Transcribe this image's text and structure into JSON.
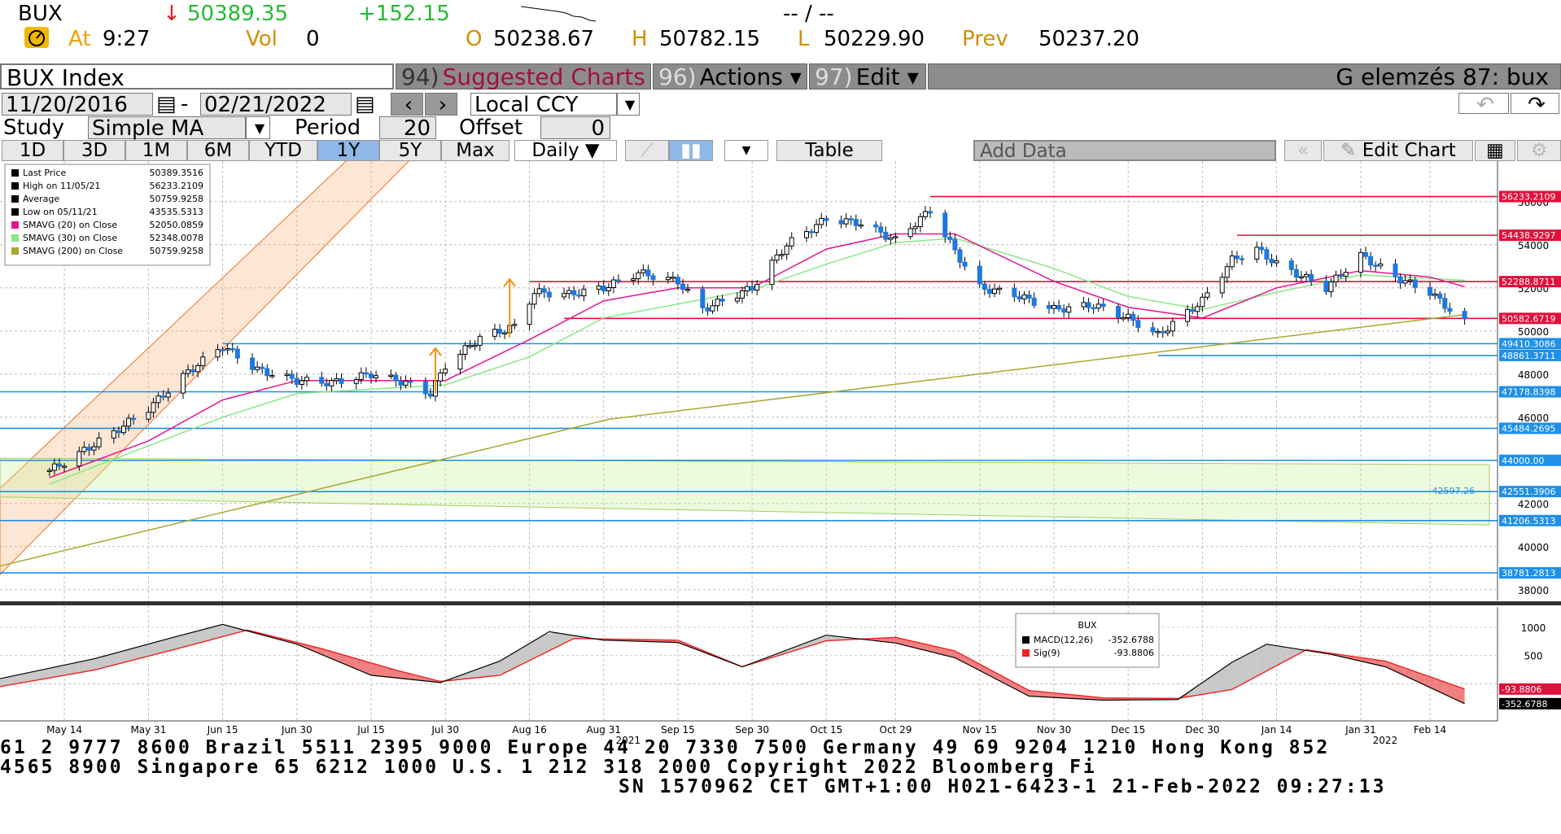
{
  "quote": {
    "ticker": "BUX",
    "arrow": "↓",
    "last": "50389.35",
    "change": "+152.15",
    "range_text": "-- / --",
    "at_label": "At",
    "time": "9:27",
    "vol_label": "Vol",
    "vol": "0",
    "open_label": "O",
    "open": "50238.67",
    "high_label": "H",
    "high": "50782.15",
    "low_label": "L",
    "low": "50229.90",
    "prev_label": "Prev",
    "prev": "50237.20"
  },
  "toolbar": {
    "security": "BUX Index",
    "suggested_num": "94)",
    "suggested": "Suggested Charts",
    "actions_num": "96)",
    "actions": "Actions ▾",
    "edit_num": "97)",
    "edit": "Edit ▾",
    "right_title": "G elemzés 87: bux"
  },
  "range": {
    "start": "11/20/2016",
    "end": "02/21/2022",
    "sep": "-",
    "currency": "Local CCY"
  },
  "study": {
    "label": "Study",
    "value": "Simple MA",
    "period_label": "Period",
    "period": "20",
    "offset_label": "Offset",
    "offset": "0"
  },
  "periods": [
    "1D",
    "3D",
    "1M",
    "6M",
    "YTD",
    "1Y",
    "5Y",
    "Max"
  ],
  "selected_period": "1Y",
  "frequency": "Daily ▼",
  "table_label": "Table",
  "add_data_placeholder": "Add Data",
  "edit_chart_label": "Edit Chart",
  "legend": [
    {
      "label": "Last Price",
      "value": "50389.3516",
      "color": "#000000"
    },
    {
      "label": "High on 11/05/21",
      "value": "56233.2109",
      "color": "#000000"
    },
    {
      "label": "Average",
      "value": "50759.9258",
      "color": "#000000"
    },
    {
      "label": "Low on 05/11/21",
      "value": "43535.5313",
      "color": "#000000"
    },
    {
      "label": "SMAVG (20)  on Close",
      "value": "52050.0859",
      "color": "#e6148c"
    },
    {
      "label": "SMAVG (30)  on Close",
      "value": "52348.0078",
      "color": "#88e888"
    },
    {
      "label": "SMAVG (200)  on Close",
      "value": "50759.9258",
      "color": "#a8a830"
    }
  ],
  "macd_legend": {
    "title": "BUX",
    "items": [
      {
        "label": "MACD(12,26)",
        "value": "-352.6788",
        "color": "#000000"
      },
      {
        "label": "Sig(9)",
        "value": "-93.8806",
        "color": "#ee2222"
      }
    ]
  },
  "chart_data": {
    "type": "candlestick",
    "ylim": [
      37500,
      57500
    ],
    "yticks": [
      38000,
      40000,
      42000,
      44000,
      46000,
      48000,
      50000,
      52000,
      54000,
      56000
    ],
    "xtick_labels": [
      "May 14",
      "May 31",
      "Jun 15",
      "Jun 30",
      "Jul 15",
      "Jul 30",
      "Aug 16",
      "Aug 31",
      "Sep 15",
      "Sep 30",
      "Oct 15",
      "Oct 29",
      "Nov 15",
      "Nov 30",
      "Dec 15",
      "Dec 30",
      "Jan 14",
      "Jan 31",
      "Feb 14"
    ],
    "year_labels": [
      "2021",
      "2022"
    ],
    "close_path": [
      [
        "2021-05-11",
        43535
      ],
      [
        "2021-05-14",
        43900
      ],
      [
        "2021-05-24",
        45300
      ],
      [
        "2021-05-31",
        46400
      ],
      [
        "2021-06-08",
        48100
      ],
      [
        "2021-06-15",
        49300
      ],
      [
        "2021-06-22",
        48200
      ],
      [
        "2021-06-30",
        47700
      ],
      [
        "2021-07-07",
        47600
      ],
      [
        "2021-07-15",
        48000
      ],
      [
        "2021-07-22",
        47600
      ],
      [
        "2021-07-27",
        47100
      ],
      [
        "2021-07-30",
        48400
      ],
      [
        "2021-08-06",
        49700
      ],
      [
        "2021-08-13",
        50200
      ],
      [
        "2021-08-17",
        51800
      ],
      [
        "2021-08-24",
        51700
      ],
      [
        "2021-08-31",
        52000
      ],
      [
        "2021-09-07",
        52700
      ],
      [
        "2021-09-15",
        52300
      ],
      [
        "2021-09-20",
        51000
      ],
      [
        "2021-09-30",
        52000
      ],
      [
        "2021-10-07",
        54000
      ],
      [
        "2021-10-15",
        55200
      ],
      [
        "2021-10-22",
        55000
      ],
      [
        "2021-10-29",
        54200
      ],
      [
        "2021-11-05",
        55600
      ],
      [
        "2021-11-10",
        53700
      ],
      [
        "2021-11-15",
        52000
      ],
      [
        "2021-11-22",
        51700
      ],
      [
        "2021-11-30",
        51000
      ],
      [
        "2021-12-08",
        51200
      ],
      [
        "2021-12-15",
        50600
      ],
      [
        "2021-12-21",
        49800
      ],
      [
        "2021-12-30",
        51400
      ],
      [
        "2022-01-05",
        53300
      ],
      [
        "2022-01-10",
        53800
      ],
      [
        "2022-01-14",
        53100
      ],
      [
        "2022-01-24",
        52000
      ],
      [
        "2022-01-31",
        53500
      ],
      [
        "2022-02-07",
        52500
      ],
      [
        "2022-02-14",
        51800
      ],
      [
        "2022-02-21",
        50389
      ]
    ],
    "sma20": [
      [
        "2021-05-11",
        43200
      ],
      [
        "2021-05-31",
        44900
      ],
      [
        "2021-06-15",
        46800
      ],
      [
        "2021-06-30",
        47700
      ],
      [
        "2021-07-15",
        47700
      ],
      [
        "2021-07-30",
        47700
      ],
      [
        "2021-08-16",
        49600
      ],
      [
        "2021-08-31",
        51400
      ],
      [
        "2021-09-15",
        52000
      ],
      [
        "2021-09-30",
        52000
      ],
      [
        "2021-10-15",
        53800
      ],
      [
        "2021-10-29",
        54500
      ],
      [
        "2021-11-10",
        54500
      ],
      [
        "2021-11-30",
        52300
      ],
      [
        "2021-12-15",
        51100
      ],
      [
        "2021-12-30",
        50600
      ],
      [
        "2022-01-14",
        52000
      ],
      [
        "2022-01-31",
        52800
      ],
      [
        "2022-02-14",
        52500
      ],
      [
        "2022-02-21",
        52050
      ]
    ],
    "sma30": [
      [
        "2021-05-11",
        42900
      ],
      [
        "2021-06-15",
        46000
      ],
      [
        "2021-06-30",
        47100
      ],
      [
        "2021-07-30",
        47500
      ],
      [
        "2021-08-16",
        48800
      ],
      [
        "2021-08-31",
        50600
      ],
      [
        "2021-09-30",
        51900
      ],
      [
        "2021-10-15",
        53100
      ],
      [
        "2021-10-29",
        54100
      ],
      [
        "2021-11-10",
        54300
      ],
      [
        "2021-11-30",
        52900
      ],
      [
        "2021-12-15",
        51600
      ],
      [
        "2021-12-30",
        51000
      ],
      [
        "2022-01-14",
        51800
      ],
      [
        "2022-01-31",
        52600
      ],
      [
        "2022-02-21",
        52348
      ]
    ],
    "sma200": [
      [
        "2021-05-01",
        39100
      ],
      [
        "2021-09-01",
        45900
      ],
      [
        "2022-02-21",
        50760
      ]
    ],
    "hlines": [
      {
        "value": 56233.2109,
        "label": "56233.2109",
        "color": "#e0103c",
        "from": "2021-11-05"
      },
      {
        "value": 54438.9297,
        "label": "54438.9297",
        "color": "#e0103c",
        "from": "2022-01-06"
      },
      {
        "value": 52288.8711,
        "label": "52288.8711",
        "color": "#e0103c",
        "from": "2021-08-16"
      },
      {
        "value": 50582.6719,
        "label": "50582.6719",
        "color": "#e0103c",
        "from": "2021-08-23"
      },
      {
        "value": 49410.3086,
        "label": "49410.3086",
        "color": "#1e90e8",
        "from": "2021-06-15"
      },
      {
        "value": 48861.3711,
        "label": "48861.3711",
        "color": "#1e90e8",
        "from": "2021-12-21"
      },
      {
        "value": 47178.8398,
        "label": "47178.8398",
        "color": "#1e90e8",
        "from": "2021-05-01"
      },
      {
        "value": 45484.2695,
        "label": "45484.2695",
        "color": "#1e90e8",
        "from": "2021-05-01"
      },
      {
        "value": 44000.0,
        "label": "44000.00",
        "color": "#1e90e8",
        "from": "2021-05-01"
      },
      {
        "value": 42551.3906,
        "label": "42551.3906",
        "color": "#1e90e8",
        "from": "2021-05-01"
      },
      {
        "value": 41206.5313,
        "label": "41206.5313",
        "color": "#1e90e8",
        "from": "2021-05-01"
      },
      {
        "value": 38781.2813,
        "label": "38781.2813",
        "color": "#1e90e8",
        "from": "2021-05-01"
      }
    ],
    "channel_note": "42597.26",
    "macd": {
      "ylim": [
        -600,
        1300
      ],
      "yticks": [
        1000,
        500
      ],
      "macd": [
        [
          "2021-05-01",
          90
        ],
        [
          "2021-05-20",
          440
        ],
        [
          "2021-06-05",
          820
        ],
        [
          "2021-06-15",
          1050
        ],
        [
          "2021-06-30",
          700
        ],
        [
          "2021-07-15",
          150
        ],
        [
          "2021-07-29",
          20
        ],
        [
          "2021-08-10",
          400
        ],
        [
          "2021-08-20",
          920
        ],
        [
          "2021-08-31",
          770
        ],
        [
          "2021-09-15",
          730
        ],
        [
          "2021-09-28",
          300
        ],
        [
          "2021-10-15",
          860
        ],
        [
          "2021-10-29",
          720
        ],
        [
          "2021-11-10",
          460
        ],
        [
          "2021-11-25",
          -220
        ],
        [
          "2021-12-10",
          -290
        ],
        [
          "2021-12-25",
          -280
        ],
        [
          "2022-01-05",
          380
        ],
        [
          "2022-01-12",
          700
        ],
        [
          "2022-01-25",
          520
        ],
        [
          "2022-02-05",
          300
        ],
        [
          "2022-02-21",
          -352
        ]
      ],
      "signal": [
        [
          "2021-05-01",
          -50
        ],
        [
          "2021-05-20",
          240
        ],
        [
          "2021-06-05",
          600
        ],
        [
          "2021-06-20",
          950
        ],
        [
          "2021-07-05",
          620
        ],
        [
          "2021-07-20",
          240
        ],
        [
          "2021-07-29",
          40
        ],
        [
          "2021-08-10",
          150
        ],
        [
          "2021-08-25",
          800
        ],
        [
          "2021-09-15",
          770
        ],
        [
          "2021-09-28",
          300
        ],
        [
          "2021-10-15",
          760
        ],
        [
          "2021-10-29",
          820
        ],
        [
          "2021-11-10",
          580
        ],
        [
          "2021-11-25",
          -120
        ],
        [
          "2021-12-10",
          -250
        ],
        [
          "2021-12-25",
          -260
        ],
        [
          "2022-01-05",
          -100
        ],
        [
          "2022-01-20",
          600
        ],
        [
          "2022-02-05",
          400
        ],
        [
          "2022-02-21",
          -94
        ]
      ],
      "labels": [
        {
          "value": -93.8806,
          "text": "-93.8806",
          "color": "#e0103c"
        },
        {
          "value": -352.6788,
          "text": "-352.6788",
          "color": "#000000"
        }
      ]
    }
  },
  "ticker_lines": [
    "61 2 9777 8600 Brazil 5511 2395 9000 Europe 44 20 7330 7500 Germany 49 69 9204 1210 Hong Kong 852",
    "4565 8900       Singapore 65 6212 1000     U.S. 1 212 318 2000      Copyright 2022 Bloomberg Fi",
    "SN 1570962 CET  GMT+1:00 H021-6423-1 21-Feb-2022 09:27:13"
  ]
}
